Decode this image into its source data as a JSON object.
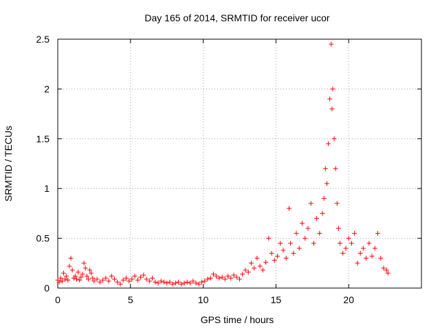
{
  "chart_data": {
    "type": "scatter",
    "title": "Day 165 of 2014, SRMTID for receiver ucor",
    "xlabel": "GPS time / hours",
    "ylabel": "SRMTID / TECUs",
    "xlim": [
      0,
      25
    ],
    "ylim": [
      0,
      2.5
    ],
    "xticks": [
      0,
      5,
      10,
      15,
      20
    ],
    "xtick_labels": [
      "0",
      "5",
      "10",
      "15",
      "20"
    ],
    "yticks": [
      0,
      0.5,
      1,
      1.5,
      2,
      2.5
    ],
    "ytick_labels": [
      "0",
      "0.5",
      "1",
      "1.5",
      "2",
      "2.5"
    ],
    "grid": true,
    "marker": "+",
    "colors": {
      "points": "#ff0000",
      "axes": "#000000",
      "grid": "#a0a0a0"
    },
    "series": [
      {
        "name": "SRMTID",
        "points": [
          [
            0.0,
            0.08
          ],
          [
            0.1,
            0.06
          ],
          [
            0.2,
            0.1
          ],
          [
            0.3,
            0.07
          ],
          [
            0.4,
            0.15
          ],
          [
            0.5,
            0.09
          ],
          [
            0.6,
            0.12
          ],
          [
            0.7,
            0.08
          ],
          [
            0.8,
            0.22
          ],
          [
            0.9,
            0.3
          ],
          [
            1.0,
            0.18
          ],
          [
            1.1,
            0.1
          ],
          [
            1.2,
            0.12
          ],
          [
            1.3,
            0.09
          ],
          [
            1.4,
            0.16
          ],
          [
            1.5,
            0.08
          ],
          [
            1.6,
            0.11
          ],
          [
            1.7,
            0.14
          ],
          [
            1.8,
            0.25
          ],
          [
            1.9,
            0.2
          ],
          [
            2.0,
            0.12
          ],
          [
            2.1,
            0.09
          ],
          [
            2.2,
            0.18
          ],
          [
            2.3,
            0.15
          ],
          [
            2.4,
            0.1
          ],
          [
            2.5,
            0.07
          ],
          [
            2.7,
            0.09
          ],
          [
            2.9,
            0.06
          ],
          [
            3.1,
            0.08
          ],
          [
            3.3,
            0.1
          ],
          [
            3.5,
            0.07
          ],
          [
            3.7,
            0.12
          ],
          [
            3.9,
            0.09
          ],
          [
            4.1,
            0.06
          ],
          [
            4.3,
            0.04
          ],
          [
            4.5,
            0.08
          ],
          [
            4.7,
            0.1
          ],
          [
            4.9,
            0.07
          ],
          [
            5.1,
            0.09
          ],
          [
            5.3,
            0.12
          ],
          [
            5.5,
            0.08
          ],
          [
            5.7,
            0.11
          ],
          [
            5.9,
            0.13
          ],
          [
            6.1,
            0.09
          ],
          [
            6.3,
            0.07
          ],
          [
            6.5,
            0.1
          ],
          [
            6.7,
            0.06
          ],
          [
            6.9,
            0.05
          ],
          [
            7.1,
            0.07
          ],
          [
            7.3,
            0.06
          ],
          [
            7.5,
            0.05
          ],
          [
            7.7,
            0.06
          ],
          [
            7.9,
            0.04
          ],
          [
            8.1,
            0.05
          ],
          [
            8.3,
            0.06
          ],
          [
            8.5,
            0.04
          ],
          [
            8.7,
            0.05
          ],
          [
            8.9,
            0.06
          ],
          [
            9.1,
            0.05
          ],
          [
            9.3,
            0.07
          ],
          [
            9.5,
            0.05
          ],
          [
            9.7,
            0.04
          ],
          [
            9.9,
            0.06
          ],
          [
            10.1,
            0.07
          ],
          [
            10.3,
            0.09
          ],
          [
            10.5,
            0.1
          ],
          [
            10.7,
            0.14
          ],
          [
            10.9,
            0.12
          ],
          [
            11.1,
            0.1
          ],
          [
            11.3,
            0.11
          ],
          [
            11.5,
            0.09
          ],
          [
            11.7,
            0.12
          ],
          [
            11.9,
            0.1
          ],
          [
            12.1,
            0.13
          ],
          [
            12.3,
            0.11
          ],
          [
            12.5,
            0.09
          ],
          [
            12.7,
            0.14
          ],
          [
            12.9,
            0.18
          ],
          [
            13.1,
            0.16
          ],
          [
            13.3,
            0.25
          ],
          [
            13.5,
            0.2
          ],
          [
            13.7,
            0.3
          ],
          [
            13.9,
            0.22
          ],
          [
            14.1,
            0.18
          ],
          [
            14.3,
            0.26
          ],
          [
            14.5,
            0.5
          ],
          [
            14.7,
            0.35
          ],
          [
            14.9,
            0.28
          ],
          [
            15.1,
            0.32
          ],
          [
            15.3,
            0.45
          ],
          [
            15.5,
            0.38
          ],
          [
            15.7,
            0.3
          ],
          [
            15.9,
            0.8
          ],
          [
            16.0,
            0.45
          ],
          [
            16.2,
            0.35
          ],
          [
            16.4,
            0.55
          ],
          [
            16.6,
            0.4
          ],
          [
            16.8,
            0.65
          ],
          [
            17.0,
            0.5
          ],
          [
            17.2,
            0.6
          ],
          [
            17.4,
            0.85
          ],
          [
            17.6,
            0.45
          ],
          [
            17.8,
            0.7
          ],
          [
            18.0,
            0.55
          ],
          [
            18.2,
            0.75
          ],
          [
            18.3,
            0.9
          ],
          [
            18.4,
            1.2
          ],
          [
            18.5,
            1.05
          ],
          [
            18.6,
            1.45
          ],
          [
            18.7,
            1.9
          ],
          [
            18.8,
            2.45
          ],
          [
            18.85,
            1.8
          ],
          [
            18.9,
            2.0
          ],
          [
            19.0,
            1.5
          ],
          [
            19.1,
            1.2
          ],
          [
            19.2,
            0.85
          ],
          [
            19.3,
            0.6
          ],
          [
            19.4,
            0.45
          ],
          [
            19.6,
            0.35
          ],
          [
            19.8,
            0.4
          ],
          [
            20.0,
            0.5
          ],
          [
            20.2,
            0.45
          ],
          [
            20.4,
            0.55
          ],
          [
            20.6,
            0.25
          ],
          [
            20.8,
            0.35
          ],
          [
            21.0,
            0.4
          ],
          [
            21.2,
            0.3
          ],
          [
            21.4,
            0.45
          ],
          [
            21.6,
            0.32
          ],
          [
            21.8,
            0.4
          ],
          [
            22.0,
            0.55
          ],
          [
            22.2,
            0.3
          ],
          [
            22.4,
            0.2
          ],
          [
            22.6,
            0.18
          ],
          [
            22.7,
            0.15
          ]
        ]
      }
    ]
  }
}
